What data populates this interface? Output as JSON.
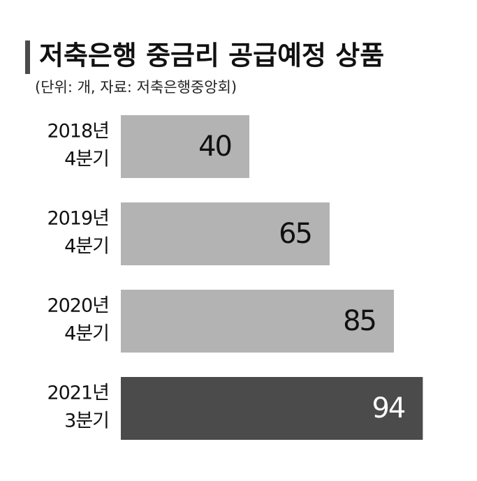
{
  "chart_data": {
    "type": "hbar",
    "title": "저축은행 중금리 공급예정 상품",
    "subtitle": "(단위: 개, 자료: 저축은행중앙회)",
    "categories": [
      [
        "2018년",
        "4분기"
      ],
      [
        "2019년",
        "4분기"
      ],
      [
        "2020년",
        "4분기"
      ],
      [
        "2021년",
        "3분기"
      ]
    ],
    "values": [
      40,
      65,
      85,
      94
    ],
    "colors": [
      "#b3b3b3",
      "#b3b3b3",
      "#b3b3b3",
      "#4b4b4b"
    ],
    "label_colors": [
      "#111111",
      "#111111",
      "#111111",
      "#ffffff"
    ]
  }
}
